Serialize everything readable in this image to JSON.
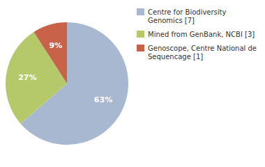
{
  "chart_data": {
    "type": "pie",
    "categories": [
      "Centre for Biodiversity\nGenomics [7]",
      "Mined from GenBank, NCBI [3]",
      "Genoscope, Centre National de\nSequencage [1]"
    ],
    "values": [
      63,
      27,
      9
    ],
    "value_labels": [
      "63%",
      "27%",
      "9%"
    ],
    "colors": [
      "#a8b8d0",
      "#b5c96a",
      "#c8634a"
    ],
    "data_labels": true,
    "legend": "right"
  }
}
